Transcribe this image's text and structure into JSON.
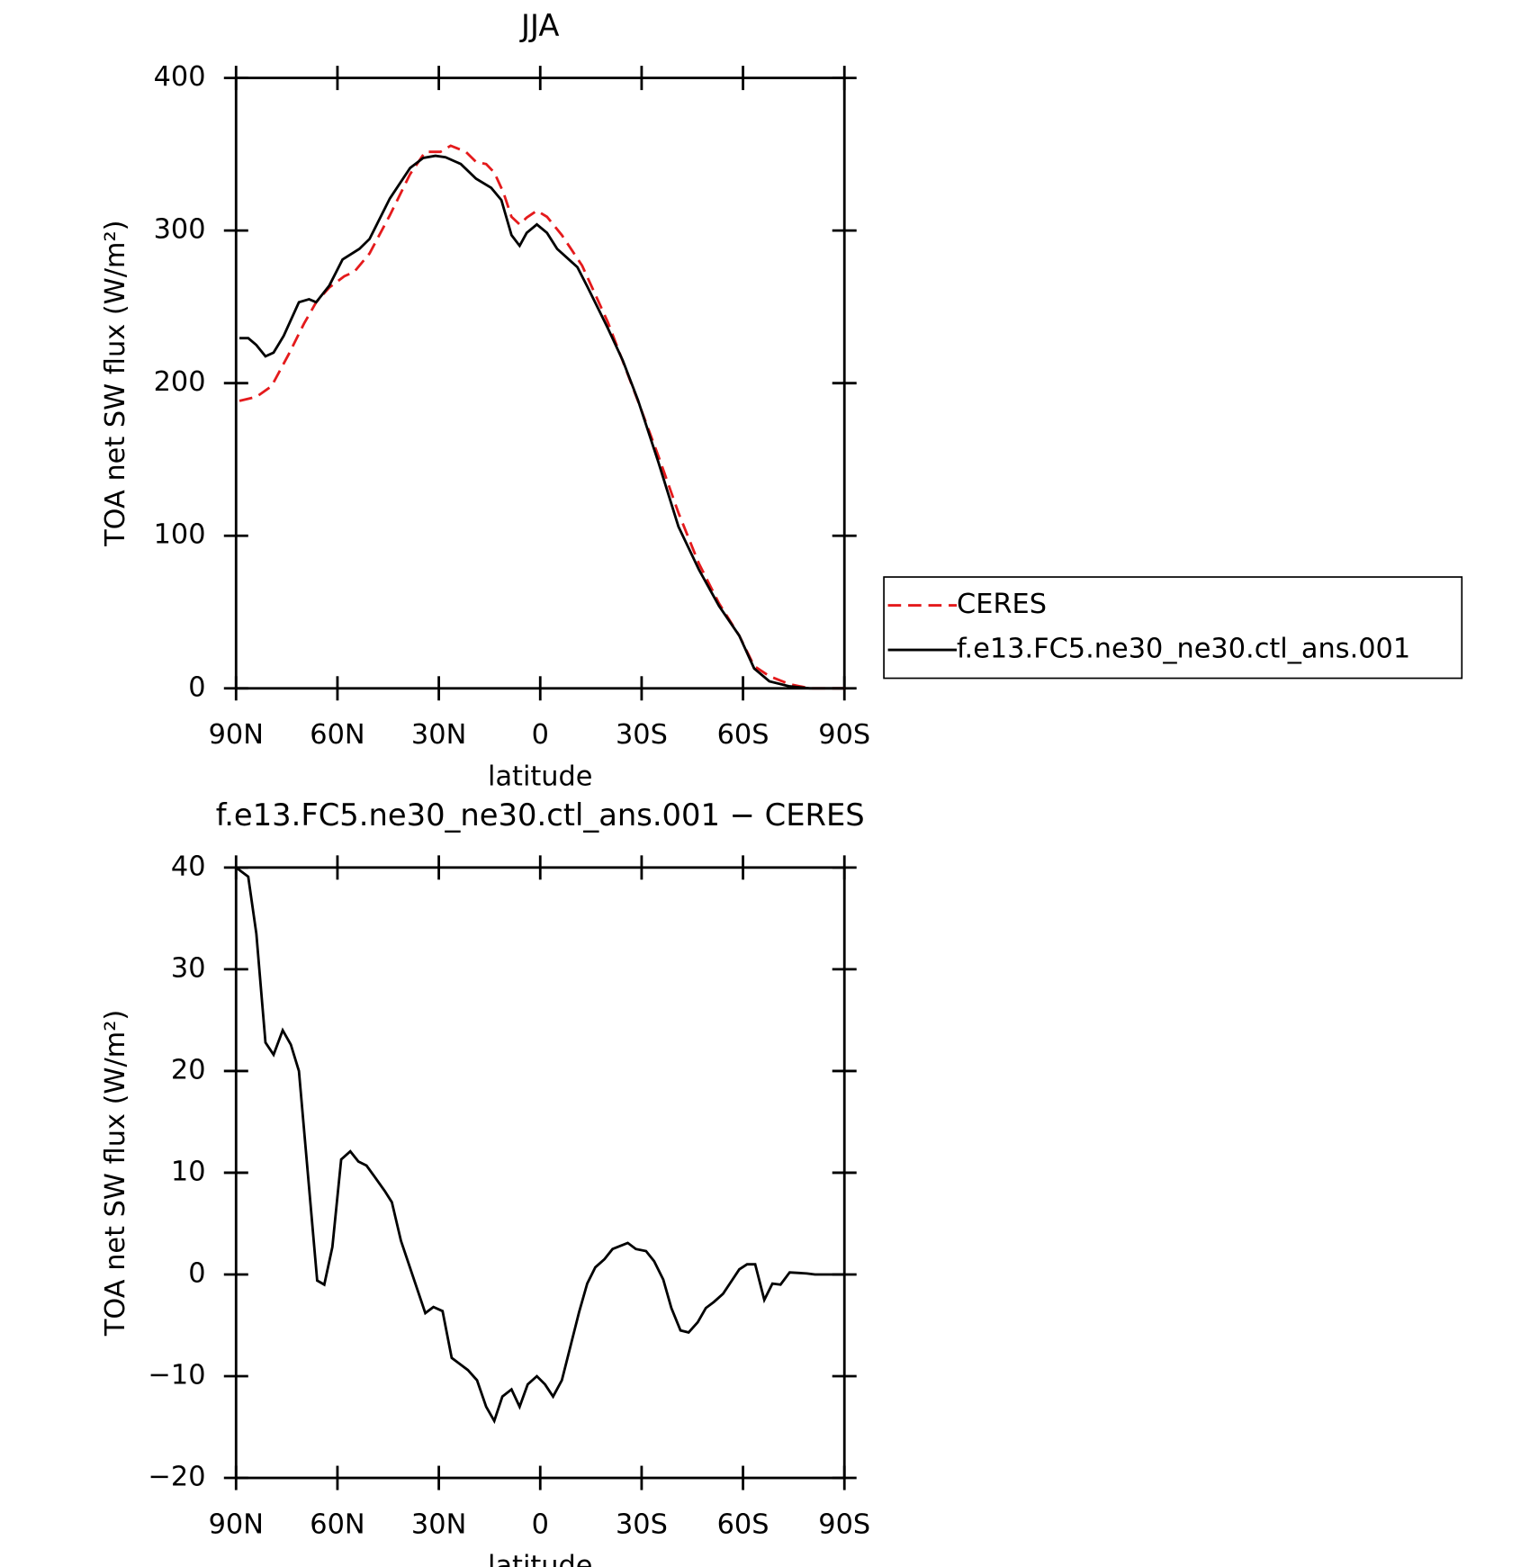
{
  "chart_data": [
    {
      "type": "line",
      "title": "JJA",
      "x_label": "latitude",
      "y_label": "TOA net SW flux (W/m²)",
      "xlim": [
        90,
        -90
      ],
      "xticks": [
        {
          "value": 90,
          "label": "90N"
        },
        {
          "value": 60,
          "label": "60N"
        },
        {
          "value": 30,
          "label": "30N"
        },
        0,
        {
          "value": -30,
          "label": "30S"
        },
        {
          "value": -60,
          "label": "60S"
        },
        {
          "value": -90,
          "label": "90S"
        }
      ],
      "ylim": [
        0,
        400
      ],
      "yticks": [
        0,
        100,
        200,
        300,
        400
      ],
      "legend": "right",
      "series": [
        {
          "name": "CERES",
          "color": "#e41a1c",
          "dashed": true,
          "x": [
            89,
            84,
            79.5,
            74.4,
            69.9,
            66.3,
            62.4,
            58,
            55,
            50.5,
            44.5,
            38.5,
            34,
            29.5,
            26.5,
            22,
            19,
            16,
            13.6,
            10.9,
            8.5,
            6.1,
            4,
            1,
            -2,
            -6.4,
            -12.4,
            -20,
            -28.9,
            -34.9,
            -40.9,
            -46.9,
            -52.9,
            -58.9,
            -63.3,
            -67.8,
            -73.8,
            -79.8,
            -90
          ],
          "values": [
            188.4,
            191,
            198,
            219,
            239,
            253,
            262.7,
            270,
            273,
            285,
            310,
            337,
            351.6,
            351.6,
            355.6,
            351.6,
            345,
            343.6,
            338,
            325,
            309,
            304,
            308.5,
            313,
            309,
            297,
            277,
            240,
            188.4,
            152.6,
            115,
            82,
            55.7,
            34.5,
            14.6,
            8,
            2.7,
            0,
            0
          ]
        },
        {
          "name": "f.e13.FC5.ne30_ne30.ctl_ans.001",
          "color": "#000000",
          "dashed": false,
          "x": [
            89,
            86.4,
            84,
            81.3,
            78.9,
            75.9,
            71.4,
            68.4,
            66.3,
            62.4,
            58.5,
            53.5,
            50.5,
            44.5,
            38.5,
            34.6,
            31,
            28,
            23.5,
            19,
            14.5,
            11.5,
            8.5,
            6.1,
            4,
            1,
            -2,
            -5,
            -11,
            -14,
            -20,
            -24.4,
            -28.9,
            -34.9,
            -40.9,
            -46.9,
            -52.9,
            -58.9,
            -63.3,
            -67.8,
            -73.8,
            -79.8,
            -90
          ],
          "values": [
            229.5,
            229.5,
            225,
            217.6,
            220,
            231,
            253,
            255,
            253,
            264,
            281,
            288,
            294.5,
            321,
            341,
            347.6,
            349,
            348,
            343.6,
            334,
            328,
            320,
            297,
            290,
            298.5,
            304,
            298.5,
            288,
            276,
            263,
            236,
            215,
            189,
            148.6,
            106,
            78,
            54,
            34.5,
            13,
            4.6,
            1.3,
            0,
            0
          ]
        }
      ]
    },
    {
      "type": "line",
      "title": "f.e13.FC5.ne30_ne30.ctl_ans.001 − CERES",
      "x_label": "latitude",
      "y_label": "TOA net SW flux (W/m²)",
      "xlim": [
        90,
        -90
      ],
      "xticks": [
        {
          "value": 90,
          "label": "90N"
        },
        {
          "value": 60,
          "label": "60N"
        },
        {
          "value": 30,
          "label": "30N"
        },
        0,
        {
          "value": -30,
          "label": "30S"
        },
        {
          "value": -60,
          "label": "60S"
        },
        {
          "value": -90,
          "label": "90S"
        }
      ],
      "ylim": [
        -20,
        40
      ],
      "yticks": [
        {
          "value": -20,
          "label": "−20"
        },
        {
          "value": -10,
          "label": "−10"
        },
        0,
        10,
        20,
        30,
        40
      ],
      "series": [
        {
          "color": "#000000",
          "dashed": false,
          "x": [
            90,
            86.4,
            84,
            81.3,
            78.9,
            76.2,
            73.8,
            71.4,
            66,
            63.9,
            61.5,
            58.9,
            56.2,
            53.8,
            51.4,
            49,
            46,
            43.9,
            41.2,
            34,
            31.6,
            28.9,
            26.2,
            21.4,
            18.7,
            16,
            13.6,
            11.2,
            8.5,
            6.1,
            3.7,
            1,
            -1.4,
            -3.8,
            -6.4,
            -11.5,
            -13.9,
            -16.3,
            -19,
            -21.4,
            -25.9,
            -28.3,
            -31.3,
            -33.7,
            -36.4,
            -38.8,
            -41.5,
            -43.9,
            -46.6,
            -49,
            -51.4,
            -54.1,
            -56.5,
            -58.9,
            -61.2,
            -63.6,
            -66.3,
            -68.7,
            -71.1,
            -73.8,
            -78.9,
            -81.3,
            -90
          ],
          "values": [
            40,
            39.1,
            33.5,
            22.8,
            21.6,
            24,
            22.6,
            20,
            -0.6,
            -1,
            2.7,
            11.3,
            12.1,
            11.1,
            10.7,
            9.6,
            8.2,
            7.1,
            3.3,
            -3.8,
            -3.2,
            -3.6,
            -8.2,
            -9.4,
            -10.4,
            -13,
            -14.4,
            -12,
            -11.3,
            -13,
            -10.8,
            -10,
            -10.8,
            -12,
            -10.4,
            -3.7,
            -0.9,
            0.7,
            1.5,
            2.5,
            3.1,
            2.5,
            2.3,
            1.3,
            -0.5,
            -3.3,
            -5.5,
            -5.7,
            -4.7,
            -3.3,
            -2.7,
            -1.9,
            -0.7,
            0.5,
            1,
            1,
            -2.5,
            -0.9,
            -1,
            0.2,
            0.1,
            0,
            0
          ]
        }
      ]
    }
  ]
}
